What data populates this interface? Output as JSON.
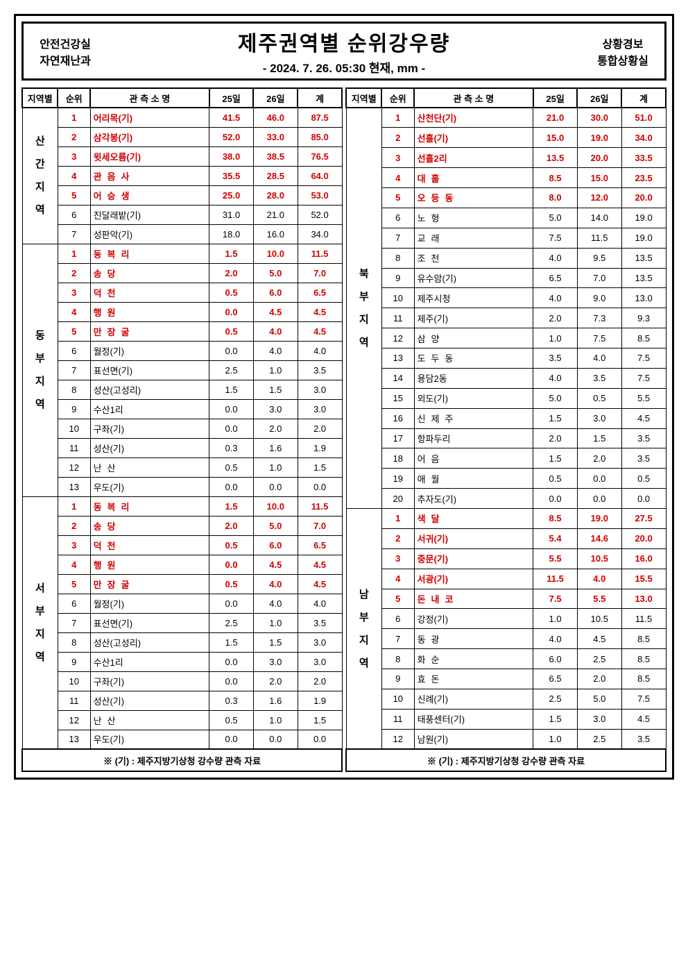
{
  "header": {
    "left_line1": "안전건강실",
    "left_line2": "자연재난과",
    "title": "제주권역별 순위강우량",
    "subtitle": "- 2024. 7. 26. 05:30  현재, mm -",
    "right_line1": "상황경보",
    "right_line2": "통합상황실"
  },
  "columns": [
    "지역별",
    "순위",
    "관 측 소 명",
    "25일",
    "26일",
    "계"
  ],
  "footnote": "※ (기) : 제주지방기상청  강수량  관측 자료",
  "left_regions": [
    {
      "name": "산\n\n간\n\n지\n\n역",
      "rows": [
        {
          "rank": 1,
          "station": "어리목(기)",
          "d25": "41.5",
          "d26": "46.0",
          "tot": "87.5",
          "top": true,
          "tight": true
        },
        {
          "rank": 2,
          "station": "삼각봉(기)",
          "d25": "52.0",
          "d26": "33.0",
          "tot": "85.0",
          "top": true,
          "tight": true
        },
        {
          "rank": 3,
          "station": "윗세오름(기)",
          "d25": "38.0",
          "d26": "38.5",
          "tot": "76.5",
          "top": true,
          "tight": true
        },
        {
          "rank": 4,
          "station": "관음사",
          "d25": "35.5",
          "d26": "28.5",
          "tot": "64.0",
          "top": true
        },
        {
          "rank": 5,
          "station": "어승생",
          "d25": "25.0",
          "d26": "28.0",
          "tot": "53.0",
          "top": true
        },
        {
          "rank": 6,
          "station": "진달래밭(기)",
          "d25": "31.0",
          "d26": "21.0",
          "tot": "52.0",
          "tight": true
        },
        {
          "rank": 7,
          "station": "성판악(기)",
          "d25": "18.0",
          "d26": "16.0",
          "tot": "34.0",
          "tight": true
        }
      ]
    },
    {
      "name": "동\n\n부\n\n지\n\n역",
      "rows": [
        {
          "rank": 1,
          "station": "동복리",
          "d25": "1.5",
          "d26": "10.0",
          "tot": "11.5",
          "top": true
        },
        {
          "rank": 2,
          "station": "송당",
          "d25": "2.0",
          "d26": "5.0",
          "tot": "7.0",
          "top": true
        },
        {
          "rank": 3,
          "station": "덕천",
          "d25": "0.5",
          "d26": "6.0",
          "tot": "6.5",
          "top": true
        },
        {
          "rank": 4,
          "station": "행원",
          "d25": "0.0",
          "d26": "4.5",
          "tot": "4.5",
          "top": true
        },
        {
          "rank": 5,
          "station": "만장굴",
          "d25": "0.5",
          "d26": "4.0",
          "tot": "4.5",
          "top": true
        },
        {
          "rank": 6,
          "station": "월정(기)",
          "d25": "0.0",
          "d26": "4.0",
          "tot": "4.0",
          "tight": true
        },
        {
          "rank": 7,
          "station": "표선면(기)",
          "d25": "2.5",
          "d26": "1.0",
          "tot": "3.5",
          "tight": true
        },
        {
          "rank": 8,
          "station": "성산(고성리)",
          "d25": "1.5",
          "d26": "1.5",
          "tot": "3.0",
          "tight": true
        },
        {
          "rank": 9,
          "station": "수산1리",
          "d25": "0.0",
          "d26": "3.0",
          "tot": "3.0",
          "tight": true
        },
        {
          "rank": 10,
          "station": "구좌(기)",
          "d25": "0.0",
          "d26": "2.0",
          "tot": "2.0",
          "tight": true
        },
        {
          "rank": 11,
          "station": "성산(기)",
          "d25": "0.3",
          "d26": "1.6",
          "tot": "1.9",
          "tight": true
        },
        {
          "rank": 12,
          "station": "난산",
          "d25": "0.5",
          "d26": "1.0",
          "tot": "1.5"
        },
        {
          "rank": 13,
          "station": "우도(기)",
          "d25": "0.0",
          "d26": "0.0",
          "tot": "0.0",
          "tight": true
        }
      ]
    },
    {
      "name": "서\n\n부\n\n지\n\n역",
      "rows": [
        {
          "rank": 1,
          "station": "동복리",
          "d25": "1.5",
          "d26": "10.0",
          "tot": "11.5",
          "top": true
        },
        {
          "rank": 2,
          "station": "송당",
          "d25": "2.0",
          "d26": "5.0",
          "tot": "7.0",
          "top": true
        },
        {
          "rank": 3,
          "station": "덕천",
          "d25": "0.5",
          "d26": "6.0",
          "tot": "6.5",
          "top": true
        },
        {
          "rank": 4,
          "station": "행원",
          "d25": "0.0",
          "d26": "4.5",
          "tot": "4.5",
          "top": true
        },
        {
          "rank": 5,
          "station": "만장굴",
          "d25": "0.5",
          "d26": "4.0",
          "tot": "4.5",
          "top": true
        },
        {
          "rank": 6,
          "station": "월정(기)",
          "d25": "0.0",
          "d26": "4.0",
          "tot": "4.0",
          "tight": true
        },
        {
          "rank": 7,
          "station": "표선면(기)",
          "d25": "2.5",
          "d26": "1.0",
          "tot": "3.5",
          "tight": true
        },
        {
          "rank": 8,
          "station": "성산(고성리)",
          "d25": "1.5",
          "d26": "1.5",
          "tot": "3.0",
          "tight": true
        },
        {
          "rank": 9,
          "station": "수산1리",
          "d25": "0.0",
          "d26": "3.0",
          "tot": "3.0",
          "tight": true
        },
        {
          "rank": 10,
          "station": "구좌(기)",
          "d25": "0.0",
          "d26": "2.0",
          "tot": "2.0",
          "tight": true
        },
        {
          "rank": 11,
          "station": "성산(기)",
          "d25": "0.3",
          "d26": "1.6",
          "tot": "1.9",
          "tight": true
        },
        {
          "rank": 12,
          "station": "난산",
          "d25": "0.5",
          "d26": "1.0",
          "tot": "1.5"
        },
        {
          "rank": 13,
          "station": "우도(기)",
          "d25": "0.0",
          "d26": "0.0",
          "tot": "0.0",
          "tight": true
        }
      ]
    }
  ],
  "right_regions": [
    {
      "name": "북\n\n부\n\n지\n\n역",
      "rows": [
        {
          "rank": 1,
          "station": "산천단(기)",
          "d25": "21.0",
          "d26": "30.0",
          "tot": "51.0",
          "top": true,
          "tight": true
        },
        {
          "rank": 2,
          "station": "선흘(기)",
          "d25": "15.0",
          "d26": "19.0",
          "tot": "34.0",
          "top": true,
          "tight": true
        },
        {
          "rank": 3,
          "station": "선흘2리",
          "d25": "13.5",
          "d26": "20.0",
          "tot": "33.5",
          "top": true,
          "tight": true
        },
        {
          "rank": 4,
          "station": "대흘",
          "d25": "8.5",
          "d26": "15.0",
          "tot": "23.5",
          "top": true
        },
        {
          "rank": 5,
          "station": "오등동",
          "d25": "8.0",
          "d26": "12.0",
          "tot": "20.0",
          "top": true
        },
        {
          "rank": 6,
          "station": "노형",
          "d25": "5.0",
          "d26": "14.0",
          "tot": "19.0"
        },
        {
          "rank": 7,
          "station": "교래",
          "d25": "7.5",
          "d26": "11.5",
          "tot": "19.0"
        },
        {
          "rank": 8,
          "station": "조천",
          "d25": "4.0",
          "d26": "9.5",
          "tot": "13.5"
        },
        {
          "rank": 9,
          "station": "유수암(기)",
          "d25": "6.5",
          "d26": "7.0",
          "tot": "13.5",
          "tight": true
        },
        {
          "rank": 10,
          "station": "제주시청",
          "d25": "4.0",
          "d26": "9.0",
          "tot": "13.0",
          "tight": true
        },
        {
          "rank": 11,
          "station": "제주(기)",
          "d25": "2.0",
          "d26": "7.3",
          "tot": "9.3",
          "tight": true
        },
        {
          "rank": 12,
          "station": "삼양",
          "d25": "1.0",
          "d26": "7.5",
          "tot": "8.5"
        },
        {
          "rank": 13,
          "station": "도두동",
          "d25": "3.5",
          "d26": "4.0",
          "tot": "7.5"
        },
        {
          "rank": 14,
          "station": "용담2동",
          "d25": "4.0",
          "d26": "3.5",
          "tot": "7.5",
          "tight": true
        },
        {
          "rank": 15,
          "station": "외도(기)",
          "d25": "5.0",
          "d26": "0.5",
          "tot": "5.5",
          "tight": true
        },
        {
          "rank": 16,
          "station": "신제주",
          "d25": "1.5",
          "d26": "3.0",
          "tot": "4.5"
        },
        {
          "rank": 17,
          "station": "항파두리",
          "d25": "2.0",
          "d26": "1.5",
          "tot": "3.5",
          "tight": true
        },
        {
          "rank": 18,
          "station": "어음",
          "d25": "1.5",
          "d26": "2.0",
          "tot": "3.5"
        },
        {
          "rank": 19,
          "station": "애월",
          "d25": "0.5",
          "d26": "0.0",
          "tot": "0.5"
        },
        {
          "rank": 20,
          "station": "추자도(기)",
          "d25": "0.0",
          "d26": "0.0",
          "tot": "0.0",
          "tight": true
        }
      ]
    },
    {
      "name": "남\n\n부\n\n지\n\n역",
      "rows": [
        {
          "rank": 1,
          "station": "색달",
          "d25": "8.5",
          "d26": "19.0",
          "tot": "27.5",
          "top": true
        },
        {
          "rank": 2,
          "station": "서귀(기)",
          "d25": "5.4",
          "d26": "14.6",
          "tot": "20.0",
          "top": true,
          "tight": true
        },
        {
          "rank": 3,
          "station": "중문(기)",
          "d25": "5.5",
          "d26": "10.5",
          "tot": "16.0",
          "top": true,
          "tight": true
        },
        {
          "rank": 4,
          "station": "서광(기)",
          "d25": "11.5",
          "d26": "4.0",
          "tot": "15.5",
          "top": true,
          "tight": true
        },
        {
          "rank": 5,
          "station": "돈내코",
          "d25": "7.5",
          "d26": "5.5",
          "tot": "13.0",
          "top": true
        },
        {
          "rank": 6,
          "station": "강정(기)",
          "d25": "1.0",
          "d26": "10.5",
          "tot": "11.5",
          "tight": true
        },
        {
          "rank": 7,
          "station": "동광",
          "d25": "4.0",
          "d26": "4.5",
          "tot": "8.5"
        },
        {
          "rank": 8,
          "station": "화순",
          "d25": "6.0",
          "d26": "2.5",
          "tot": "8.5"
        },
        {
          "rank": 9,
          "station": "효돈",
          "d25": "6.5",
          "d26": "2.0",
          "tot": "8.5"
        },
        {
          "rank": 10,
          "station": "신례(기)",
          "d25": "2.5",
          "d26": "5.0",
          "tot": "7.5",
          "tight": true
        },
        {
          "rank": 11,
          "station": "태풍센터(기)",
          "d25": "1.5",
          "d26": "3.0",
          "tot": "4.5",
          "tight": true
        },
        {
          "rank": 12,
          "station": "남원(기)",
          "d25": "1.0",
          "d26": "2.5",
          "tot": "3.5",
          "tight": true
        }
      ]
    }
  ],
  "styling": {
    "top_rank_count": 5,
    "top_rank_color": "#d00000",
    "border_color": "#000000",
    "background": "#ffffff",
    "title_fontsize": 30,
    "subtitle_fontsize": 17,
    "body_fontsize": 13
  }
}
